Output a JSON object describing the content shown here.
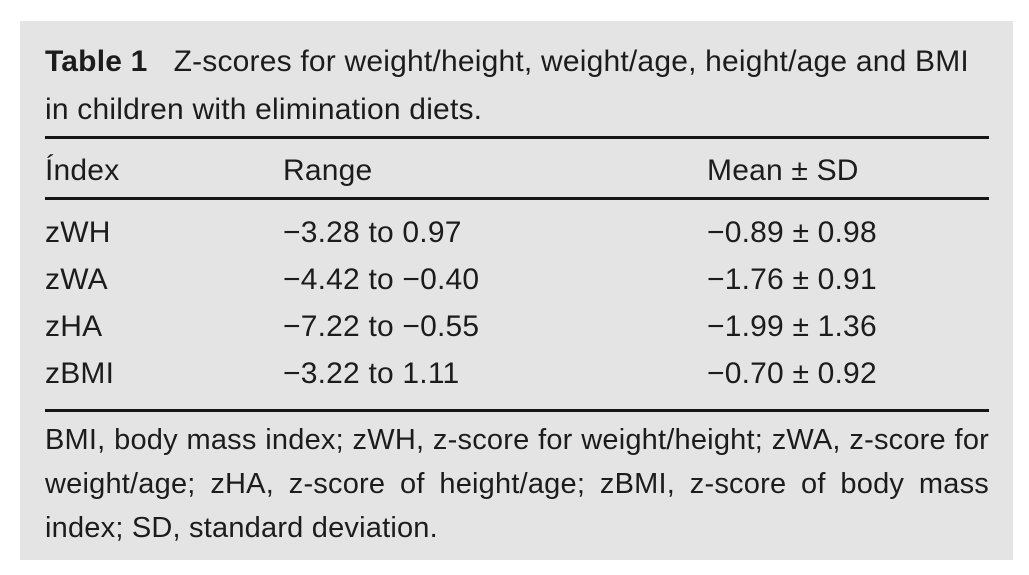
{
  "colors": {
    "page_background": "#ffffff",
    "panel_background": "#e5e4e4",
    "text": "#1c1c1c",
    "rule": "#161616"
  },
  "table": {
    "label": "Table 1",
    "caption": "Z-scores for weight/height, weight/age, height/age and BMI in children with elimination diets.",
    "columns": [
      "Índex",
      "Range",
      "Mean ± SD"
    ],
    "rows": [
      {
        "index": "zWH",
        "range": "−3.28 to 0.97",
        "mean_sd": "−0.89 ± 0.98"
      },
      {
        "index": "zWA",
        "range": "−4.42 to −0.40",
        "mean_sd": "−1.76 ± 0.91"
      },
      {
        "index": "zHA",
        "range": "−7.22 to −0.55",
        "mean_sd": "−1.99 ± 1.36"
      },
      {
        "index": "zBMI",
        "range": "−3.22 to 1.11",
        "mean_sd": "−0.70 ± 0.92"
      }
    ],
    "footnote": "BMI, body mass index; zWH, z-score for weight/height; zWA, z-score for weight/age; zHA, z-score of height/age; zBMI, z-score of body mass index; SD, standard deviation."
  },
  "chart_data": {
    "type": "table",
    "title": "Table 1  Z-scores for weight/height, weight/age, height/age and BMI in children with elimination diets.",
    "columns": [
      "Índex",
      "Range",
      "Mean ± SD"
    ],
    "rows": [
      [
        "zWH",
        "−3.28 to 0.97",
        "−0.89 ± 0.98"
      ],
      [
        "zWA",
        "−4.42 to −0.40",
        "−1.76 ± 0.91"
      ],
      [
        "zHA",
        "−7.22 to −0.55",
        "−1.99 ± 1.36"
      ],
      [
        "zBMI",
        "−3.22 to 1.11",
        "−0.70 ± 0.92"
      ]
    ],
    "footnote": "BMI, body mass index; zWH, z-score for weight/height; zWA, z-score for weight/age; zHA, z-score of height/age; zBMI, z-score of body mass index; SD, standard deviation."
  }
}
